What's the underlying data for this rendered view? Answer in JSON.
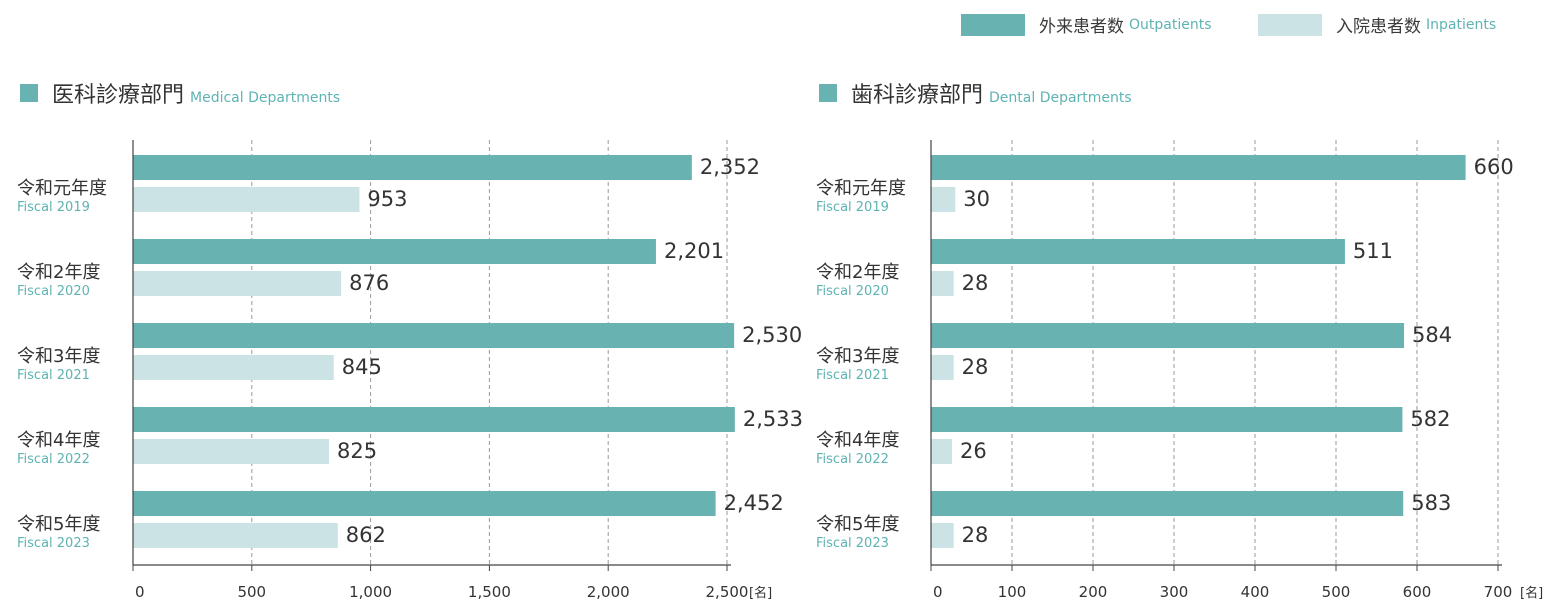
{
  "legend": {
    "outpatients_jp": "外来患者数",
    "outpatients_en": "Outpatients",
    "inpatients_jp": "入院患者数",
    "inpatients_en": "Inpatients"
  },
  "colors": {
    "outpatients": "#69b2b2",
    "inpatients": "#cce3e5",
    "accent_text": "#5fb3b3",
    "text": "#333333"
  },
  "chart_data": [
    {
      "type": "bar",
      "orientation": "horizontal",
      "title_jp": "医科診療部門",
      "title_en": "Medical Departments",
      "unit": "[名]",
      "categories": [
        {
          "jp": "令和元年度",
          "en": "Fiscal 2019"
        },
        {
          "jp": "令和2年度",
          "en": "Fiscal 2020"
        },
        {
          "jp": "令和3年度",
          "en": "Fiscal 2021"
        },
        {
          "jp": "令和4年度",
          "en": "Fiscal 2022"
        },
        {
          "jp": "令和5年度",
          "en": "Fiscal 2023"
        }
      ],
      "series": [
        {
          "name": "外来患者数 Outpatients",
          "values": [
            2352,
            2201,
            2530,
            2533,
            2452
          ]
        },
        {
          "name": "入院患者数 Inpatients",
          "values": [
            953,
            876,
            845,
            825,
            862
          ]
        }
      ],
      "value_labels": [
        [
          "2,352",
          "2,201",
          "2,530",
          "2,533",
          "2,452"
        ],
        [
          "953",
          "876",
          "845",
          "825",
          "862"
        ]
      ],
      "xlim": [
        0,
        2500
      ],
      "xticks": [
        0,
        500,
        1000,
        1500,
        2000,
        2500
      ],
      "xtick_labels": [
        "0",
        "500",
        "1,000",
        "1,500",
        "2,000",
        "2,500"
      ],
      "grid": "vertical dashed"
    },
    {
      "type": "bar",
      "orientation": "horizontal",
      "title_jp": "歯科診療部門",
      "title_en": "Dental Departments",
      "unit": "[名]",
      "categories": [
        {
          "jp": "令和元年度",
          "en": "Fiscal 2019"
        },
        {
          "jp": "令和2年度",
          "en": "Fiscal 2020"
        },
        {
          "jp": "令和3年度",
          "en": "Fiscal 2021"
        },
        {
          "jp": "令和4年度",
          "en": "Fiscal 2022"
        },
        {
          "jp": "令和5年度",
          "en": "Fiscal 2023"
        }
      ],
      "series": [
        {
          "name": "外来患者数 Outpatients",
          "values": [
            660,
            511,
            584,
            582,
            583
          ]
        },
        {
          "name": "入院患者数 Inpatients",
          "values": [
            30,
            28,
            28,
            26,
            28
          ]
        }
      ],
      "value_labels": [
        [
          "660",
          "511",
          "584",
          "582",
          "583"
        ],
        [
          "30",
          "28",
          "28",
          "26",
          "28"
        ]
      ],
      "xlim": [
        0,
        700
      ],
      "xticks": [
        0,
        100,
        200,
        300,
        400,
        500,
        600,
        700
      ],
      "xtick_labels": [
        "0",
        "100",
        "200",
        "300",
        "400",
        "500",
        "600",
        "700"
      ],
      "grid": "vertical dashed"
    }
  ]
}
